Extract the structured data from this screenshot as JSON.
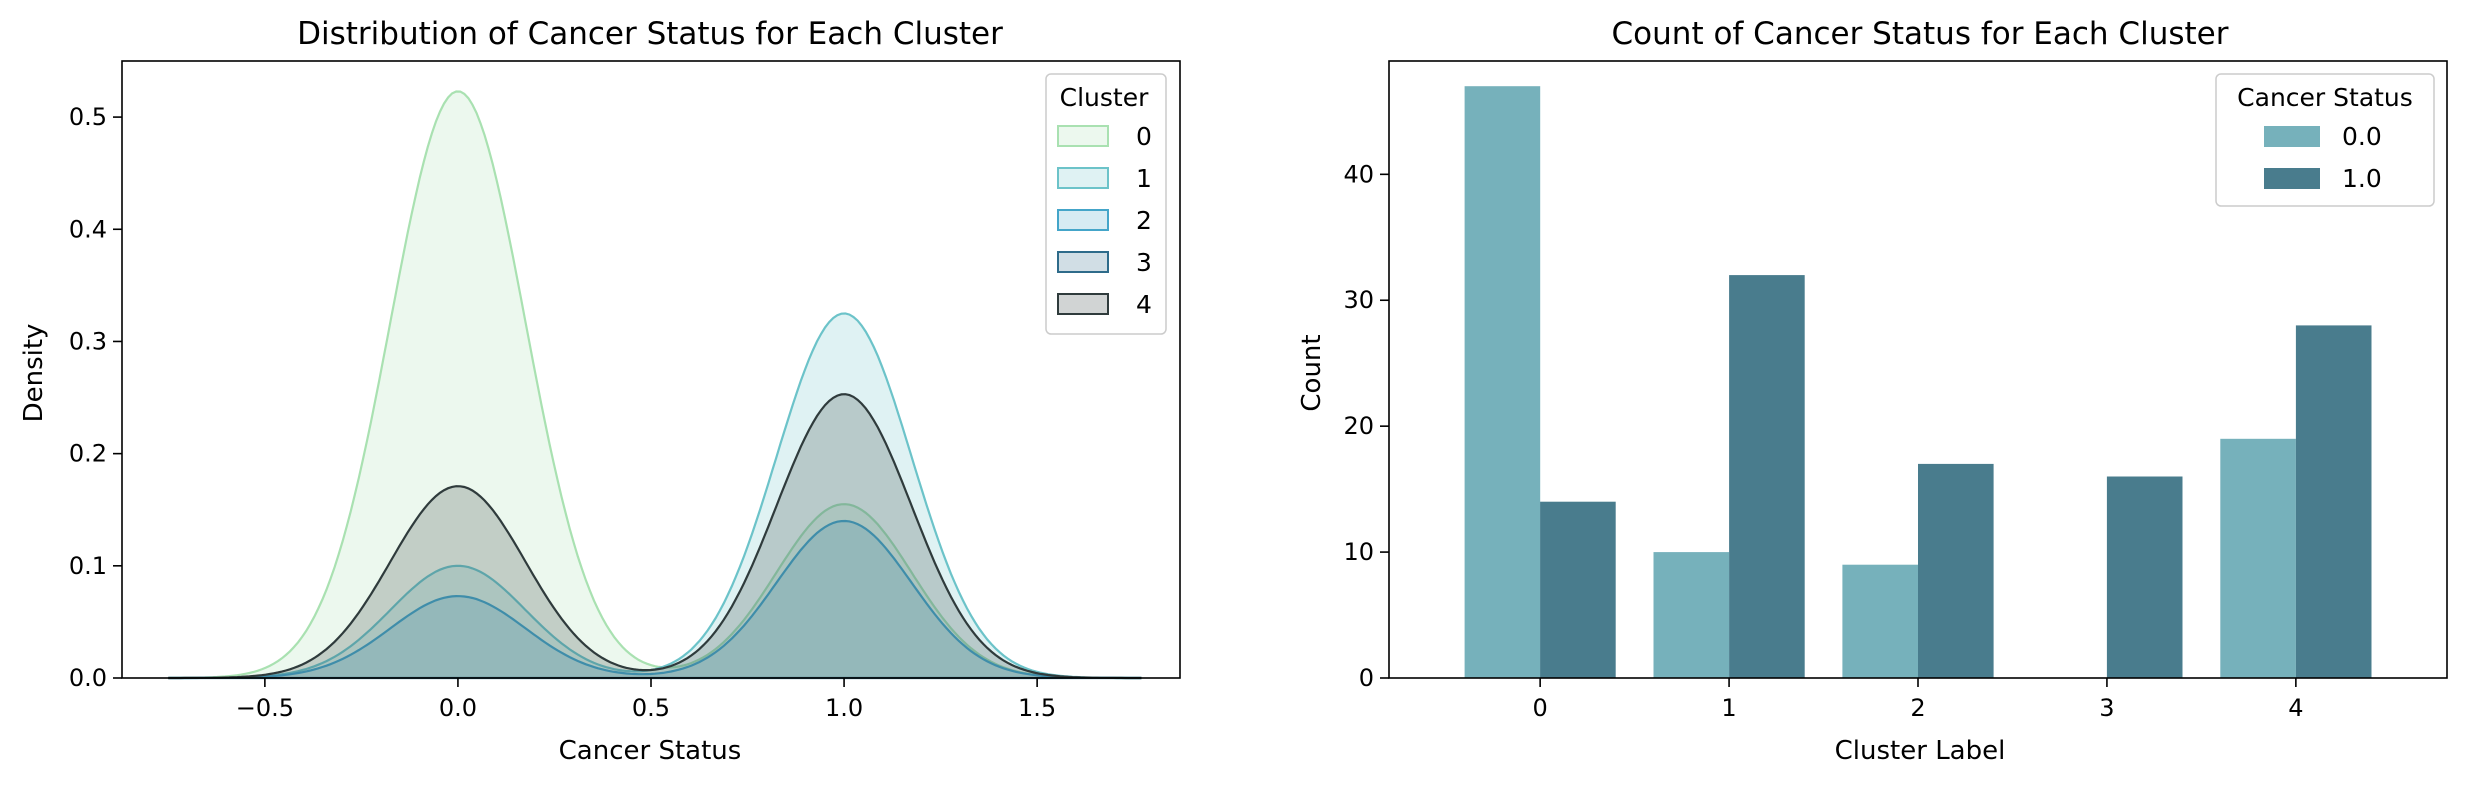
{
  "chart_data": [
    {
      "type": "area",
      "title": "Distribution of Cancer Status for Each Cluster",
      "xlabel": "Cancer Status",
      "ylabel": "Density",
      "xlim": [
        -0.87,
        1.87
      ],
      "ylim": [
        0,
        0.55
      ],
      "xticks": [
        -0.5,
        0.0,
        0.5,
        1.0,
        1.5
      ],
      "xtick_labels": [
        "−0.5",
        "0.0",
        "0.5",
        "1.0",
        "1.5"
      ],
      "yticks": [
        0.0,
        0.1,
        0.2,
        0.3,
        0.4,
        0.5
      ],
      "ytick_labels": [
        "0.0",
        "0.1",
        "0.2",
        "0.3",
        "0.4",
        "0.5"
      ],
      "legend": {
        "title": "Cluster",
        "position": "top-right"
      },
      "kernel_sd": 0.175,
      "support": [
        -0.75,
        1.77
      ],
      "series": [
        {
          "name": "0",
          "color": "#a9e1b1",
          "peaks": [
            {
              "x": 0.0,
              "density": 0.523
            },
            {
              "x": 1.0,
              "density": 0.155
            }
          ]
        },
        {
          "name": "1",
          "color": "#6cc3c9",
          "peaks": [
            {
              "x": 0.0,
              "density": 0.1
            },
            {
              "x": 1.0,
              "density": 0.325
            }
          ]
        },
        {
          "name": "2",
          "color": "#44a5c9",
          "peaks": [
            {
              "x": 0.0,
              "density": 0.073
            },
            {
              "x": 1.0,
              "density": 0.14
            }
          ]
        },
        {
          "name": "3",
          "color": "#2e6b8a",
          "peaks": [
            {
              "x": 0.0,
              "density": 0.0
            },
            {
              "x": 1.0,
              "density": 0.0
            }
          ]
        },
        {
          "name": "4",
          "color": "#2f3b3c",
          "peaks": [
            {
              "x": 0.0,
              "density": 0.171
            },
            {
              "x": 1.0,
              "density": 0.253
            }
          ]
        }
      ]
    },
    {
      "type": "bar",
      "title": "Count of Cancer Status for Each Cluster",
      "xlabel": "Cluster Label",
      "ylabel": "Count",
      "categories": [
        "0",
        "1",
        "2",
        "3",
        "4"
      ],
      "ylim": [
        0,
        49
      ],
      "yticks": [
        0,
        10,
        20,
        30,
        40
      ],
      "ytick_labels": [
        "0",
        "10",
        "20",
        "30",
        "40"
      ],
      "legend": {
        "title": "Cancer Status",
        "position": "top-right"
      },
      "series": [
        {
          "name": "0.0",
          "color": "#76b1bb",
          "values": [
            47,
            10,
            9,
            0,
            19
          ]
        },
        {
          "name": "1.0",
          "color": "#497c8d",
          "values": [
            14,
            32,
            17,
            16,
            28
          ]
        }
      ]
    }
  ]
}
